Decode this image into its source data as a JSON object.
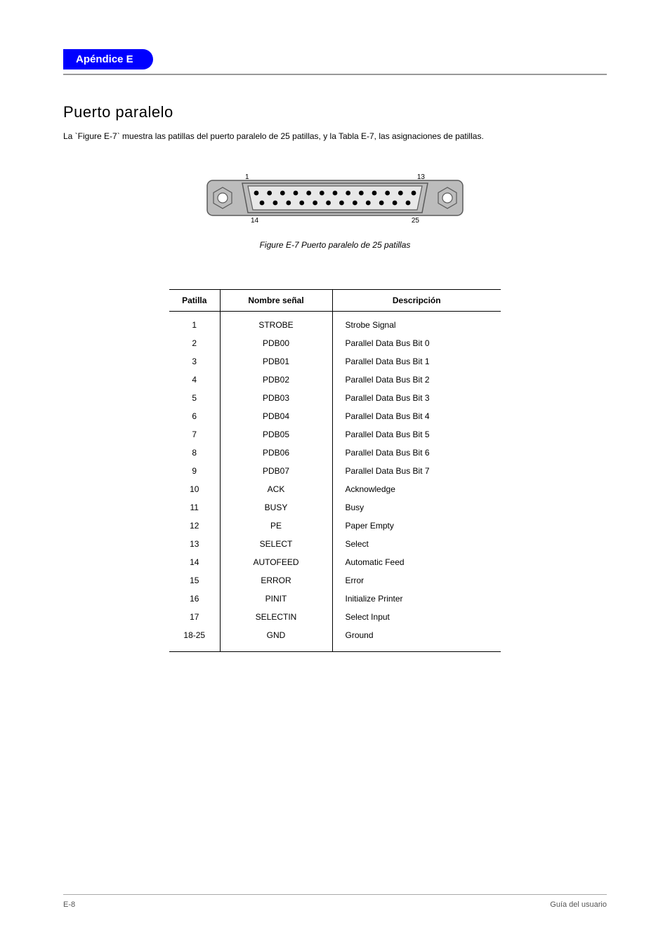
{
  "header": {
    "appendix": "Apéndice E"
  },
  "section": {
    "title": "Puerto paralelo",
    "subtitle": "La `Figure E-7` muestra las patillas del puerto paralelo de 25 patillas, y la Tabla E-7, las asignaciones de patillas."
  },
  "figure": {
    "caption": "Figure E-7 Puerto paralelo de 25 patillas",
    "pin_labels_top_left": "1",
    "pin_labels_top_right": "13",
    "pin_labels_bottom_left": "14",
    "pin_labels_bottom_right": "25"
  },
  "connector": {
    "body_fill": "#bcbcbc",
    "body_stroke": "#5a5a5a",
    "inner_fill": "#e8e8e8",
    "inner_stroke": "#5a5a5a",
    "pin_fill": "#000000",
    "screw_fill": "#ffffff",
    "screw_stroke": "#5a5a5a",
    "top_pins": 13,
    "bottom_pins": 12
  },
  "table": {
    "headers": [
      "Patilla",
      "Nombre señal",
      "Descripción"
    ],
    "rows": [
      [
        "1",
        "STROBE",
        "Strobe Signal"
      ],
      [
        "2",
        "PDB00",
        "Parallel Data Bus Bit 0"
      ],
      [
        "3",
        "PDB01",
        "Parallel Data Bus Bit 1"
      ],
      [
        "4",
        "PDB02",
        "Parallel Data Bus Bit 2"
      ],
      [
        "5",
        "PDB03",
        "Parallel Data Bus Bit 3"
      ],
      [
        "6",
        "PDB04",
        "Parallel Data Bus Bit 4"
      ],
      [
        "7",
        "PDB05",
        "Parallel Data Bus Bit 5"
      ],
      [
        "8",
        "PDB06",
        "Parallel Data Bus Bit 6"
      ],
      [
        "9",
        "PDB07",
        "Parallel Data Bus Bit 7"
      ],
      [
        "10",
        "ACK",
        "Acknowledge"
      ],
      [
        "11",
        "BUSY",
        "Busy"
      ],
      [
        "12",
        "PE",
        "Paper Empty"
      ],
      [
        "13",
        "SELECT",
        "Select"
      ],
      [
        "14",
        "AUTOFEED",
        "Automatic Feed"
      ],
      [
        "15",
        "ERROR",
        "Error"
      ],
      [
        "16",
        "PINIT",
        "Initialize Printer"
      ],
      [
        "17",
        "SELECTIN",
        "Select Input"
      ],
      [
        "18-25",
        "GND",
        "Ground"
      ]
    ]
  },
  "footer": {
    "left": "E-8",
    "right": "Guía del usuario"
  }
}
